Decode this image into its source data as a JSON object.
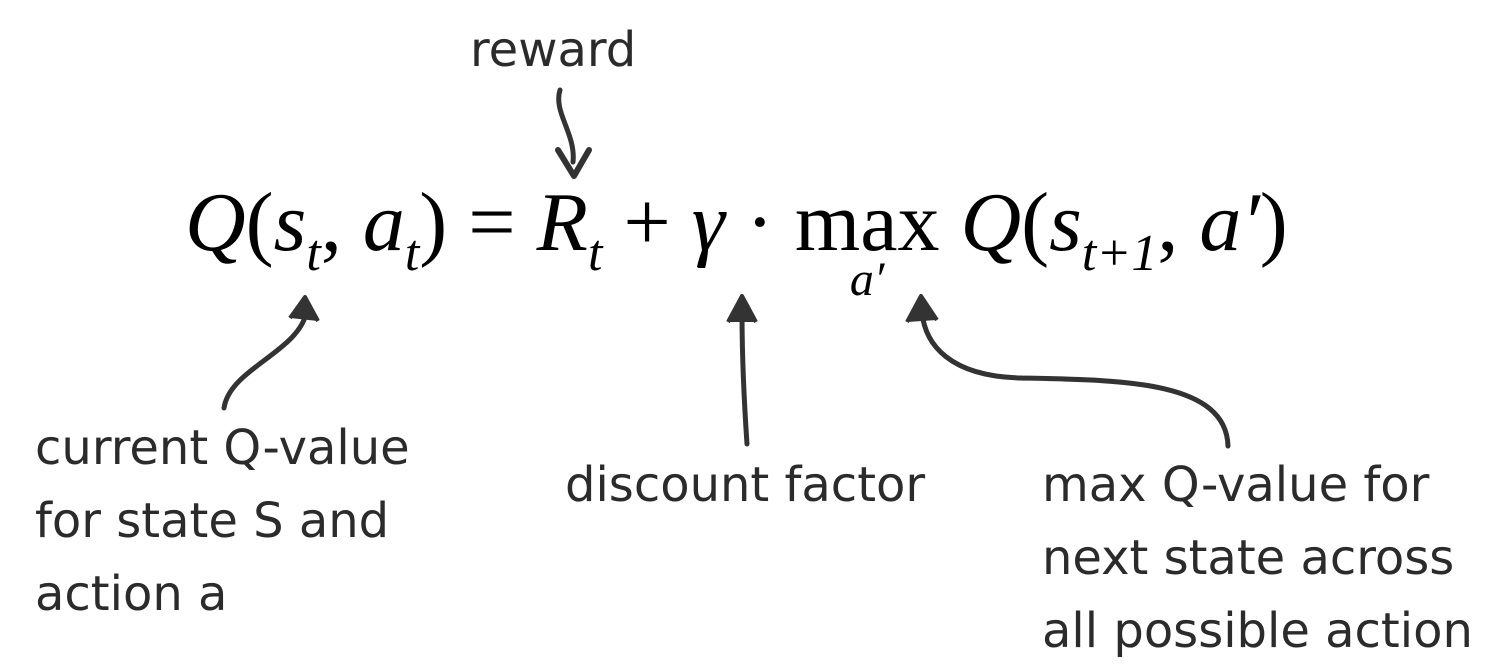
{
  "equation": {
    "q": "Q",
    "open": "(",
    "s": "s",
    "sub_t": "t",
    "comma": ",",
    "a": "a",
    "close": ")",
    "eq": "=",
    "r": "R",
    "plus": "+",
    "gamma": "γ",
    "dot": "·",
    "max": "max",
    "a_prime": "a′",
    "sub_t1": "t+1"
  },
  "labels": {
    "reward": "reward",
    "current": [
      "current Q-value",
      "for state S and",
      "action a"
    ],
    "discount": "discount factor",
    "next_max": [
      "max Q-value for",
      "next state across",
      "all possible action"
    ]
  }
}
